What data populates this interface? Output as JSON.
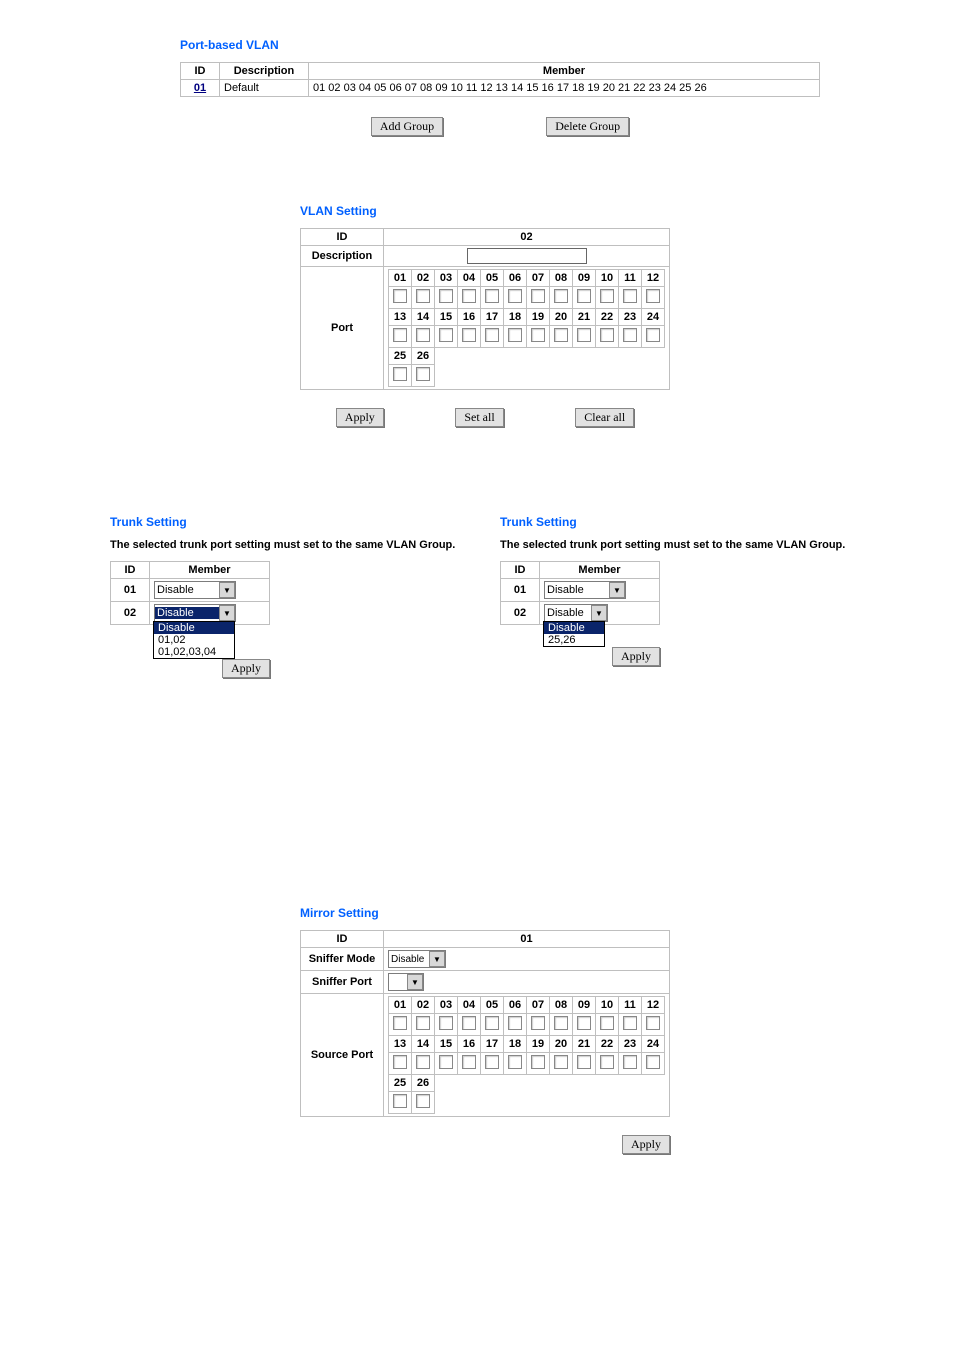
{
  "portBasedVlan": {
    "heading": "Port-based VLAN",
    "table": {
      "head": {
        "id": "ID",
        "desc": "Description",
        "member": "Member"
      },
      "row": {
        "id": "01",
        "desc": "Default",
        "member": "01 02 03 04 05 06 07 08 09 10 11 12 13 14 15 16 17 18 19 20 21 22 23 24 25 26"
      }
    },
    "buttons": {
      "add": "Add Group",
      "del": "Delete Group"
    }
  },
  "vlanSetting": {
    "heading": "VLAN Setting",
    "labels": {
      "id": "ID",
      "desc": "Description",
      "port": "Port"
    },
    "idValue": "02",
    "descValue": "",
    "ports": [
      "01",
      "02",
      "03",
      "04",
      "05",
      "06",
      "07",
      "08",
      "09",
      "10",
      "11",
      "12",
      "13",
      "14",
      "15",
      "16",
      "17",
      "18",
      "19",
      "20",
      "21",
      "22",
      "23",
      "24",
      "25",
      "26"
    ],
    "buttons": {
      "apply": "Apply",
      "setall": "Set all",
      "clearall": "Clear all"
    }
  },
  "trunkLeft": {
    "heading": "Trunk Setting",
    "hint": "The selected trunk port setting must set to the same VLAN Group.",
    "head": {
      "id": "ID",
      "member": "Member"
    },
    "rows": [
      {
        "id": "01",
        "value": "Disable"
      },
      {
        "id": "02",
        "value": "Disable"
      }
    ],
    "dropdownOptions": [
      "Disable",
      "01,02",
      "01,02,03,04"
    ],
    "apply": "Apply"
  },
  "trunkRight": {
    "heading": "Trunk Setting",
    "hint": "The selected trunk port setting must set to the same VLAN Group.",
    "head": {
      "id": "ID",
      "member": "Member"
    },
    "rows": [
      {
        "id": "01",
        "value": "Disable"
      },
      {
        "id": "02",
        "value": "Disable"
      }
    ],
    "dropdownOptions": [
      "Disable",
      "25,26"
    ],
    "apply": "Apply"
  },
  "mirror": {
    "heading": "Mirror Setting",
    "labels": {
      "id": "ID",
      "mode": "Sniffer Mode",
      "sport": "Sniffer Port",
      "source": "Source Port"
    },
    "idValue": "01",
    "modeValue": "Disable",
    "portValue": "",
    "ports": [
      "01",
      "02",
      "03",
      "04",
      "05",
      "06",
      "07",
      "08",
      "09",
      "10",
      "11",
      "12",
      "13",
      "14",
      "15",
      "16",
      "17",
      "18",
      "19",
      "20",
      "21",
      "22",
      "23",
      "24",
      "25",
      "26"
    ],
    "apply": "Apply"
  }
}
